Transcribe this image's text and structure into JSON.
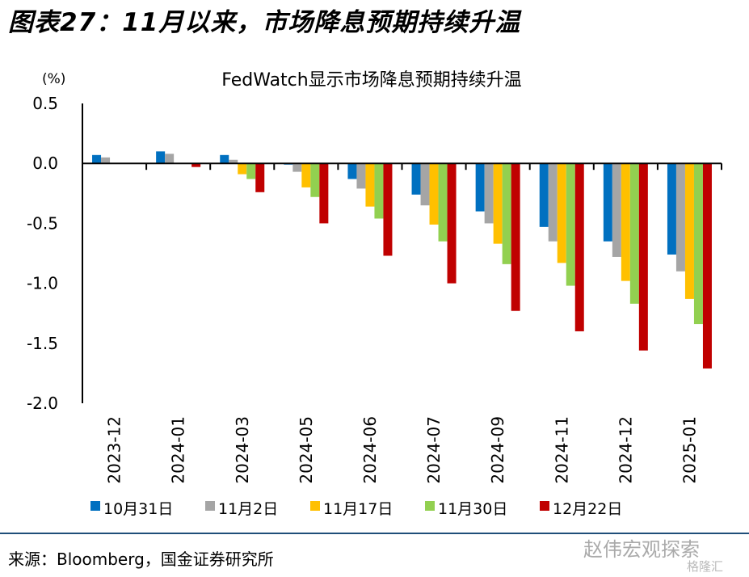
{
  "header": "图表27：11月以来，市场降息预期持续升温",
  "source": "来源：Bloomberg，国金证券研究所",
  "watermark": "赵伟宏观探索",
  "watermark2": "格隆汇",
  "chart_data": {
    "type": "bar",
    "title": "FedWatch显示市场降息预期持续升温",
    "ylabel": "(%)",
    "xlabel": "",
    "ylim": [
      -2.0,
      0.5
    ],
    "yticks": [
      "0.5",
      "0.0",
      "-0.5",
      "-1.0",
      "-1.5",
      "-2.0"
    ],
    "ytick_values": [
      0.5,
      0,
      -0.5,
      -1.0,
      -1.5,
      -2.0
    ],
    "legend_position": "bottom",
    "categories": [
      "2023-12",
      "2024-01",
      "2024-03",
      "2024-05",
      "2024-06",
      "2024-07",
      "2024-09",
      "2024-11",
      "2024-12",
      "2025-01"
    ],
    "series": [
      {
        "name": "10月31日",
        "color": "#0070c0",
        "values": [
          0.07,
          0.1,
          0.07,
          -0.01,
          -0.13,
          -0.26,
          -0.4,
          -0.53,
          -0.65,
          -0.76
        ]
      },
      {
        "name": "11月2日",
        "color": "#a5a5a5",
        "values": [
          0.05,
          0.08,
          0.03,
          -0.07,
          -0.21,
          -0.35,
          -0.5,
          -0.65,
          -0.78,
          -0.9
        ]
      },
      {
        "name": "11月17日",
        "color": "#ffc000",
        "values": [
          0.0,
          0.0,
          -0.09,
          -0.2,
          -0.36,
          -0.51,
          -0.67,
          -0.83,
          -0.98,
          -1.13
        ]
      },
      {
        "name": "11月30日",
        "color": "#92d050",
        "values": [
          0.0,
          0.0,
          -0.13,
          -0.28,
          -0.46,
          -0.65,
          -0.84,
          -1.02,
          -1.17,
          -1.34
        ]
      },
      {
        "name": "12月22日",
        "color": "#c00000",
        "values": [
          0.0,
          -0.03,
          -0.24,
          -0.5,
          -0.77,
          -1.0,
          -1.23,
          -1.4,
          -1.56,
          -1.71
        ]
      }
    ]
  }
}
